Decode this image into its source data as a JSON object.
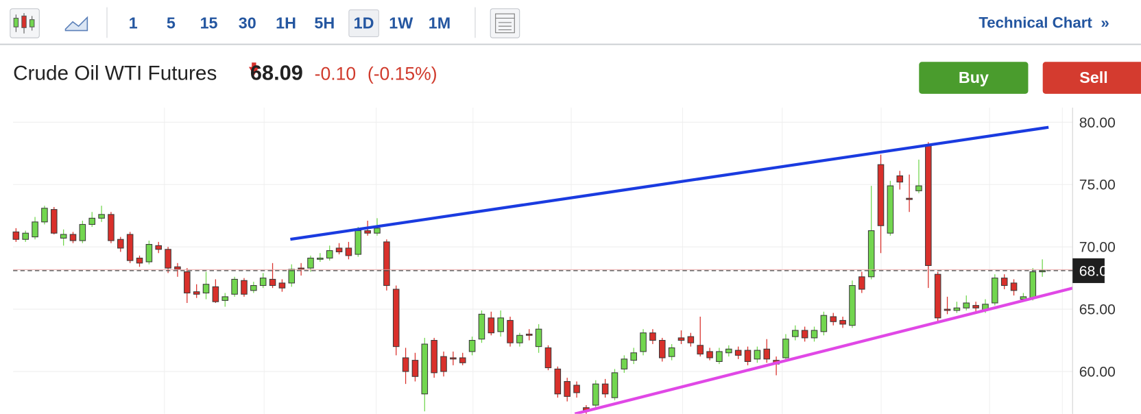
{
  "toolbar": {
    "intervals": [
      "1",
      "5",
      "15",
      "30",
      "1H",
      "5H",
      "1D",
      "1W",
      "1M"
    ],
    "link": "Technical Chart",
    "link_icon": "»"
  },
  "quote": {
    "name": "Crude Oil WTI Futures",
    "price": 68.09,
    "change": "-0.10",
    "change_pct": "(-0.15%)"
  },
  "buttons": [
    "Buy",
    "Sell"
  ],
  "chart_data": {
    "type": "candlestick",
    "open": [
      71.2,
      70.6,
      70.8,
      72.0,
      73.0,
      70.7,
      71.0,
      70.5,
      71.8,
      72.3,
      72.6,
      70.6,
      71.0,
      69.1,
      68.8,
      70.1,
      69.8,
      68.4,
      68.0,
      66.4,
      66.3,
      66.8,
      65.7,
      66.2,
      67.3,
      66.5,
      66.9,
      67.4,
      67.1,
      67.1,
      68.3,
      68.3,
      69.0,
      69.1,
      69.9,
      69.9,
      69.4,
      71.3,
      71.1,
      70.4,
      66.6,
      61.1,
      60.9,
      58.2,
      62.5,
      61.2,
      61.1,
      61.1,
      61.6,
      62.6,
      64.3,
      63.2,
      64.1,
      62.3,
      63.0,
      62.0,
      61.9,
      60.2,
      59.2,
      58.9,
      57.1,
      57.3,
      59.0,
      57.9,
      60.2,
      60.9,
      61.6,
      63.1,
      62.5,
      61.2,
      62.7,
      62.8,
      62.1,
      61.6,
      60.8,
      61.5,
      61.7,
      61.7,
      61.0,
      61.8,
      60.9,
      61.1,
      62.8,
      63.3,
      62.7,
      63.2,
      64.4,
      64.1,
      63.7,
      67.6,
      67.6,
      76.6,
      71.1,
      75.7,
      73.9,
      74.5,
      78.1,
      67.8,
      65.0,
      64.9,
      65.1,
      65.3,
      64.9,
      65.5,
      67.5,
      67.1,
      65.8,
      65.9,
      68.0
    ],
    "high": [
      71.5,
      71.3,
      72.4,
      73.3,
      73.2,
      71.4,
      71.2,
      72.1,
      72.8,
      73.3,
      72.8,
      70.8,
      71.2,
      69.3,
      70.5,
      70.4,
      70.0,
      68.7,
      68.3,
      67.0,
      68.0,
      67.4,
      66.3,
      67.6,
      67.5,
      67.2,
      67.9,
      68.7,
      67.4,
      68.6,
      68.7,
      69.3,
      69.5,
      70.1,
      70.3,
      70.4,
      71.6,
      72.1,
      72.3,
      70.6,
      66.9,
      61.9,
      61.5,
      62.7,
      62.7,
      61.6,
      61.6,
      61.5,
      62.8,
      64.9,
      64.8,
      64.9,
      64.4,
      63.1,
      63.4,
      63.8,
      62.1,
      60.4,
      59.5,
      59.2,
      57.3,
      59.3,
      59.4,
      60.2,
      61.3,
      61.9,
      63.4,
      63.4,
      62.7,
      62.2,
      63.3,
      63.1,
      64.4,
      61.9,
      61.9,
      62.1,
      62.0,
      62.0,
      62.0,
      62.6,
      61.2,
      63.0,
      63.7,
      63.6,
      63.6,
      64.8,
      64.7,
      64.4,
      67.3,
      68.0,
      74.9,
      77.4,
      75.3,
      76.1,
      75.8,
      77.0,
      78.4,
      68.0,
      66.0,
      65.6,
      66.1,
      65.6,
      65.8,
      67.8,
      67.8,
      67.4,
      66.3,
      68.3,
      69.0
    ],
    "low": [
      70.4,
      70.4,
      70.6,
      71.8,
      71.0,
      70.1,
      70.3,
      70.3,
      71.6,
      72.0,
      70.3,
      69.6,
      68.7,
      68.4,
      68.6,
      69.5,
      67.9,
      67.6,
      65.5,
      65.9,
      65.8,
      65.5,
      65.2,
      66.0,
      66.0,
      66.3,
      66.7,
      66.7,
      66.4,
      66.8,
      67.7,
      68.0,
      68.8,
      68.9,
      69.4,
      69.0,
      69.2,
      70.9,
      70.9,
      66.5,
      61.3,
      59.0,
      59.2,
      56.8,
      59.5,
      59.6,
      60.5,
      60.5,
      61.3,
      62.3,
      62.9,
      62.8,
      62.0,
      62.0,
      62.5,
      61.5,
      60.1,
      57.9,
      57.6,
      57.9,
      56.6,
      57.0,
      57.9,
      57.7,
      59.9,
      60.6,
      61.3,
      62.2,
      60.8,
      60.9,
      62.2,
      62.0,
      61.2,
      60.9,
      60.6,
      61.2,
      61.0,
      60.5,
      60.7,
      60.7,
      59.7,
      60.8,
      62.5,
      62.4,
      62.4,
      62.9,
      63.7,
      63.5,
      63.5,
      66.3,
      67.4,
      69.5,
      70.9,
      74.6,
      72.8,
      74.3,
      66.7,
      64.0,
      64.6,
      64.7,
      64.9,
      64.8,
      64.7,
      65.3,
      66.6,
      66.1,
      65.6,
      65.7,
      67.6
    ],
    "close": [
      70.6,
      71.1,
      72.0,
      73.1,
      71.1,
      71.0,
      70.5,
      71.8,
      72.3,
      72.6,
      70.5,
      69.9,
      68.9,
      68.7,
      70.2,
      69.8,
      68.3,
      68.2,
      66.3,
      66.2,
      67.0,
      65.6,
      66.0,
      67.4,
      66.2,
      66.9,
      67.5,
      66.9,
      66.7,
      68.2,
      68.2,
      69.1,
      69.1,
      69.7,
      69.6,
      69.3,
      71.3,
      71.1,
      71.5,
      66.9,
      62.0,
      60.0,
      59.6,
      62.2,
      59.9,
      60.0,
      61.0,
      60.7,
      62.5,
      64.6,
      63.1,
      64.3,
      62.3,
      62.9,
      62.9,
      63.4,
      60.3,
      58.2,
      58.0,
      58.3,
      56.9,
      59.0,
      58.2,
      59.9,
      61.0,
      61.5,
      63.1,
      62.5,
      61.1,
      61.9,
      62.5,
      62.3,
      61.4,
      61.1,
      61.6,
      61.8,
      61.3,
      60.8,
      61.7,
      61.0,
      60.6,
      62.6,
      63.3,
      62.7,
      63.3,
      64.5,
      64.0,
      63.8,
      66.9,
      66.6,
      71.3,
      71.7,
      74.9,
      75.2,
      73.8,
      74.9,
      68.5,
      64.3,
      64.9,
      65.1,
      65.5,
      65.1,
      65.4,
      67.5,
      66.9,
      66.5,
      66.0,
      68.0,
      68.1
    ],
    "ylim": [
      56.6,
      81.17
    ],
    "yticks": [
      {
        "value": 60,
        "label": "60.00"
      },
      {
        "value": 65,
        "label": "65.00"
      },
      {
        "value": 70,
        "label": "70.00"
      },
      {
        "value": 75,
        "label": "75.00"
      },
      {
        "value": 80,
        "label": "80.00"
      }
    ],
    "up_color": "#72d64f",
    "down_color": "#d9302b",
    "grid": true
  }
}
